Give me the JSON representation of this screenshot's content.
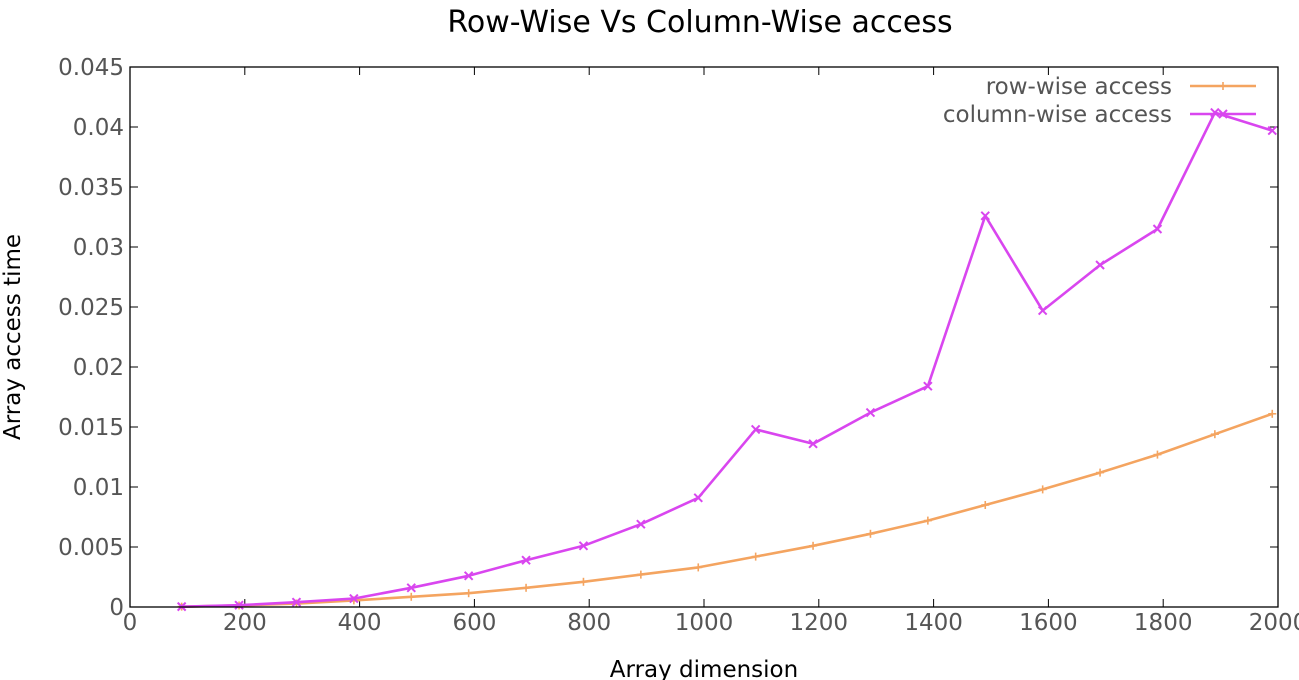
{
  "chart_data": {
    "type": "line",
    "title": "Row-Wise Vs Column-Wise access",
    "xlabel": "Array dimension",
    "ylabel": "Array access time",
    "xlim": [
      0,
      2000
    ],
    "ylim": [
      0,
      0.045
    ],
    "x_ticks": [
      {
        "value": 0,
        "label": "0"
      },
      {
        "value": 200,
        "label": "200"
      },
      {
        "value": 400,
        "label": "400"
      },
      {
        "value": 600,
        "label": "600"
      },
      {
        "value": 800,
        "label": "800"
      },
      {
        "value": 1000,
        "label": "1000"
      },
      {
        "value": 1200,
        "label": "1200"
      },
      {
        "value": 1400,
        "label": "1400"
      },
      {
        "value": 1600,
        "label": "1600"
      },
      {
        "value": 1800,
        "label": "1800"
      },
      {
        "value": 2000,
        "label": "2000"
      }
    ],
    "y_ticks": [
      {
        "value": 0,
        "label": "0"
      },
      {
        "value": 0.005,
        "label": "0.005"
      },
      {
        "value": 0.01,
        "label": "0.01"
      },
      {
        "value": 0.015,
        "label": "0.015"
      },
      {
        "value": 0.02,
        "label": "0.02"
      },
      {
        "value": 0.025,
        "label": "0.025"
      },
      {
        "value": 0.03,
        "label": "0.03"
      },
      {
        "value": 0.035,
        "label": "0.035"
      },
      {
        "value": 0.04,
        "label": "0.04"
      },
      {
        "value": 0.045,
        "label": "0.045"
      }
    ],
    "grid": false,
    "legend_position": "top-right",
    "x": [
      90,
      190,
      290,
      390,
      490,
      590,
      690,
      790,
      890,
      990,
      1090,
      1190,
      1290,
      1390,
      1490,
      1590,
      1690,
      1790,
      1890,
      1990
    ],
    "series": [
      {
        "name": "row-wise access",
        "color": "#f4a460",
        "marker": "plus",
        "values": [
          3e-05,
          0.00013,
          0.00029,
          0.00055,
          0.00085,
          0.00115,
          0.0016,
          0.0021,
          0.0027,
          0.0033,
          0.0042,
          0.0051,
          0.0061,
          0.0072,
          0.0085,
          0.0098,
          0.0112,
          0.0127,
          0.0144,
          0.0161
        ]
      },
      {
        "name": "column-wise access",
        "color": "#d946ef",
        "marker": "cross",
        "values": [
          3e-05,
          0.00015,
          0.0004,
          0.0007,
          0.0016,
          0.0026,
          0.0039,
          0.0051,
          0.0069,
          0.0091,
          0.0148,
          0.0136,
          0.0162,
          0.0184,
          0.0326,
          0.0247,
          0.0285,
          0.0315,
          0.0412,
          0.0397
        ]
      }
    ]
  }
}
